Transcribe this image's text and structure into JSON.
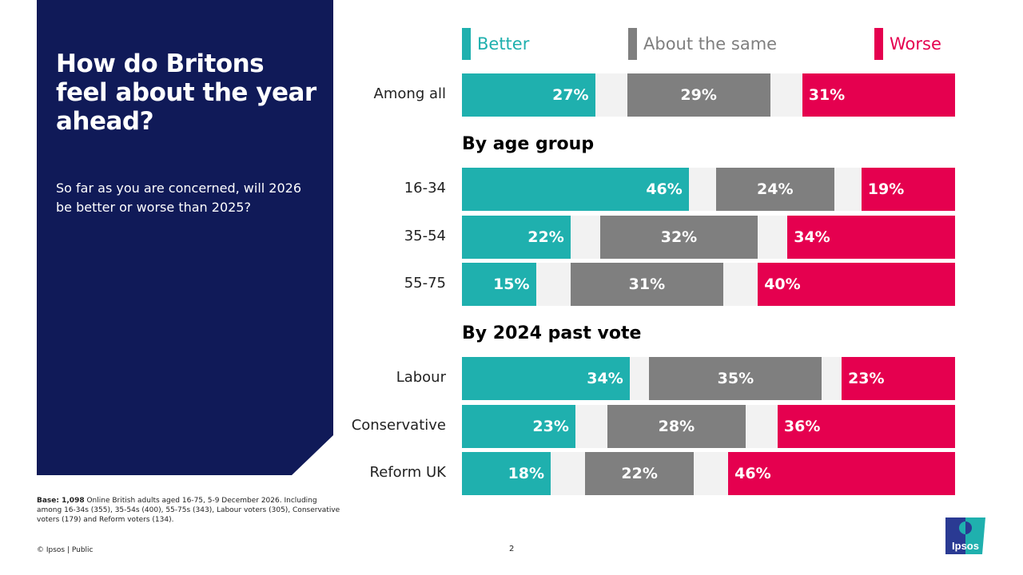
{
  "header": {
    "title": "How do Britons feel about the year ahead?",
    "subtitle": "So far as you are concerned, will 2026 be better or worse than 2025?"
  },
  "colors": {
    "better": "#1fb0ae",
    "same": "#7f7f7f",
    "worse": "#e5004f",
    "panel": "#101a58",
    "track": "#f2f2f2"
  },
  "chart_data": {
    "type": "bar",
    "stacked": true,
    "orientation": "horizontal",
    "legend": [
      "Better",
      "About the same",
      "Worse"
    ],
    "legend_position": "top",
    "sections": [
      {
        "title": "",
        "rows": [
          {
            "label": "Among all",
            "values": [
              27,
              29,
              31
            ],
            "labels": [
              "27%",
              "29%",
              "31%"
            ]
          }
        ]
      },
      {
        "title": "By age group",
        "rows": [
          {
            "label": "16-34",
            "values": [
              46,
              24,
              19
            ],
            "labels": [
              "46%",
              "24%",
              "19%"
            ]
          },
          {
            "label": "35-54",
            "values": [
              22,
              32,
              34
            ],
            "labels": [
              "22%",
              "32%",
              "34%"
            ]
          },
          {
            "label": "55-75",
            "values": [
              15,
              31,
              40
            ],
            "labels": [
              "15%",
              "31%",
              "40%"
            ]
          }
        ]
      },
      {
        "title": "By 2024 past vote",
        "rows": [
          {
            "label": "Labour",
            "values": [
              34,
              35,
              23
            ],
            "labels": [
              "34%",
              "35%",
              "23%"
            ]
          },
          {
            "label": "Conservative",
            "values": [
              23,
              28,
              36
            ],
            "labels": [
              "23%",
              "28%",
              "36%"
            ]
          },
          {
            "label": "Reform UK",
            "values": [
              18,
              22,
              46
            ],
            "labels": [
              "18%",
              "22%",
              "46%"
            ]
          }
        ]
      }
    ]
  },
  "footer": {
    "base_bold": "Base: 1,098",
    "base_text": " Online British adults aged 16-75, 5-9 December 2026. Including among 16-34s (355), 35-54s (400), 55-75s (343), Labour voters (305), Conservative voters (179) and Reform voters (134).",
    "copyright": "© Ipsos | Public",
    "page": "2",
    "logo": "Ipsos"
  }
}
